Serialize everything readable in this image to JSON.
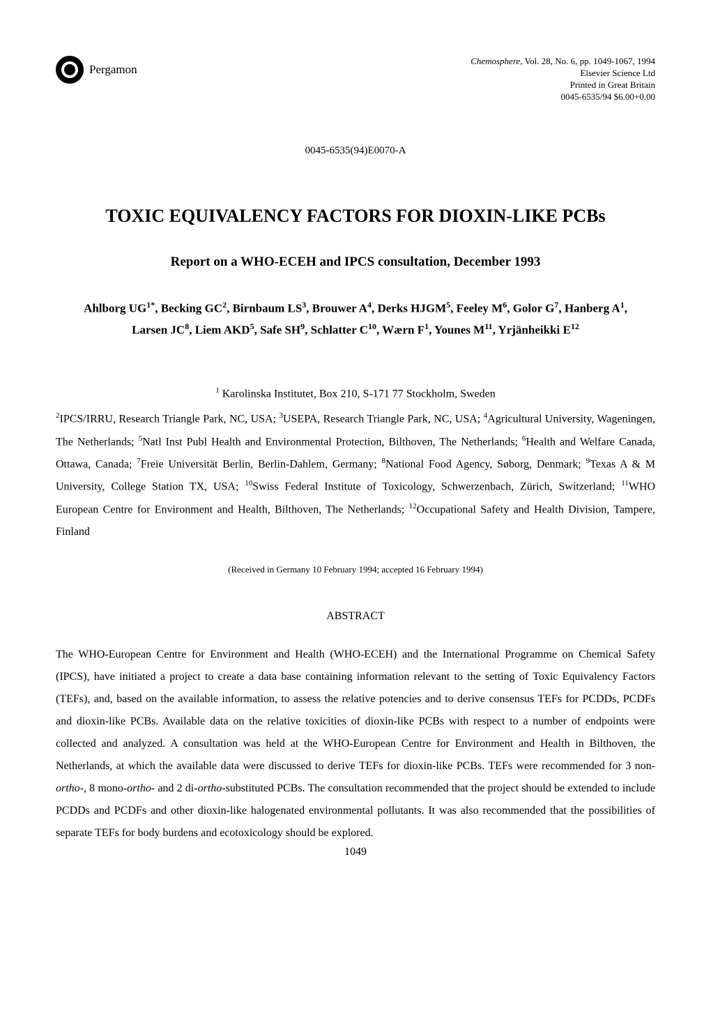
{
  "publisher": {
    "name": "Pergamon"
  },
  "journal": {
    "name": "Chemosphere",
    "citation": ", Vol. 28, No. 6, pp. 1049-1067, 1994",
    "line2": "Elsevier Science Ltd",
    "line3": "Printed in Great Britain",
    "line4": "0045-6535/94 $6.00+0.00"
  },
  "doi": "0045-6535(94)E0070-A",
  "title": "TOXIC EQUIVALENCY FACTORS FOR DIOXIN-LIKE PCBs",
  "subtitle": "Report on a WHO-ECEH and IPCS consultation, December 1993",
  "authors_html": "Ahlborg UG<sup>1*</sup>, Becking GC<sup>2</sup>, Birnbaum LS<sup>3</sup>, Brouwer A<sup>4</sup>, Derks HJGM<sup>5</sup>, Feeley M<sup>6</sup>, Golor G<sup>7</sup>, Hanberg A<sup>1</sup>, Larsen JC<sup>8</sup>, Liem AKD<sup>5</sup>, Safe SH<sup>9</sup>, Schlatter C<sup>10</sup>, Wærn F<sup>1</sup>, Younes M<sup>11</sup>, Yrjänheikki E<sup>12</sup>",
  "affiliations": {
    "first": "<sup>1</sup> Karolinska Institutet, Box 210, S-171 77 Stockholm, Sweden",
    "rest": "<sup>2</sup>IPCS/IRRU, Research Triangle Park, NC, USA; <sup>3</sup>USEPA, Research Triangle Park, NC, USA; <sup>4</sup>Agricultural University, Wageningen, The Netherlands; <sup>5</sup>Natl Inst Publ Health and Environmental Protection, Bilthoven, The Netherlands; <sup>6</sup>Health and Welfare Canada, Ottawa, Canada; <sup>7</sup>Freie Universität Berlin, Berlin-Dahlem, Germany; <sup>8</sup>National Food Agency, Søborg, Denmark; <sup>9</sup>Texas A & M University, College Station TX, USA; <sup>10</sup>Swiss Federal Institute of Toxicology, Schwerzenbach, Zürich, Switzerland; <sup>11</sup>WHO European Centre for Environment and Health, Bilthoven, The Netherlands; <sup>12</sup>Occupational Safety and Health Division, Tampere, Finland"
  },
  "received": "(Received in Germany 10 February 1994; accepted 16 February 1994)",
  "abstract": {
    "heading": "ABSTRACT",
    "text": "The WHO-European Centre for Environment and Health (WHO-ECEH) and the International Programme on Chemical Safety (IPCS), have initiated a project to create a data base containing information relevant to the setting of Toxic Equivalency Factors (TEFs), and, based on the available information, to assess the relative potencies and to derive consensus TEFs for PCDDs, PCDFs and dioxin-like PCBs. Available data on the relative toxicities of dioxin-like PCBs with respect to a number of endpoints were collected and analyzed. A consultation was held at the WHO-European Centre for Environment and Health in Bilthoven, the Netherlands, at which the available data were discussed to derive TEFs for dioxin-like PCBs. TEFs were recommended for 3 non-<span class=\"italic\">ortho</span>-, 8 mono-<span class=\"italic\">ortho</span>- and 2 di-<span class=\"italic\">ortho</span>-substituted PCBs. The consultation recommended that the project should be extended to include PCDDs and PCDFs and other dioxin-like halogenated environmental pollutants. It was also recommended that the possibilities of separate TEFs for body burdens and ecotoxicology should be explored."
  },
  "page_number": "1049"
}
